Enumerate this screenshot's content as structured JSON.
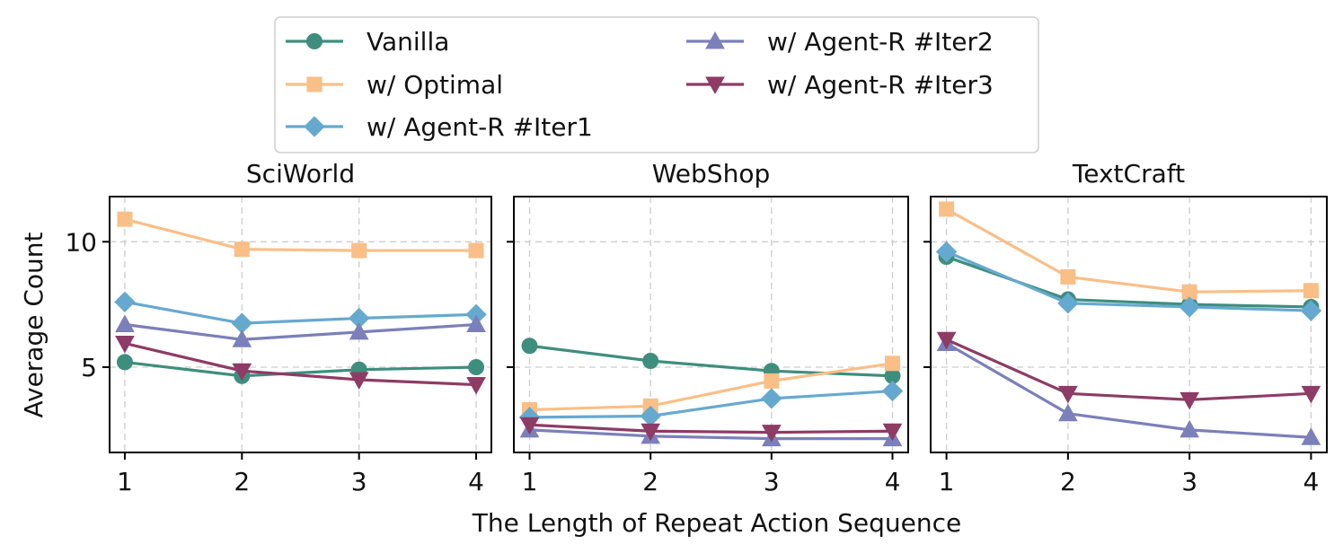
{
  "chart_data": {
    "type": "line",
    "xlabel": "The Length of Repeat Action Sequence",
    "ylabel": "Average Count",
    "ylim": [
      1.6,
      11.8
    ],
    "yticks": [
      5,
      10
    ],
    "x": [
      1,
      2,
      3,
      4
    ],
    "legend_position": "top-center",
    "legend": [
      {
        "name": "Vanilla",
        "color": "#3e8e7e",
        "marker": "circle"
      },
      {
        "name": "w/ Optimal",
        "color": "#f9bf87",
        "marker": "square"
      },
      {
        "name": "w/ Agent-R #Iter1",
        "color": "#66a9cf",
        "marker": "diamond"
      },
      {
        "name": "w/ Agent-R #Iter2",
        "color": "#7b80ba",
        "marker": "triangle-up"
      },
      {
        "name": "w/ Agent-R #Iter3",
        "color": "#8e3b66",
        "marker": "triangle-down"
      }
    ],
    "subplots": [
      {
        "title": "SciWorld",
        "series": [
          {
            "name": "Vanilla",
            "values": [
              5.2,
              4.65,
              4.9,
              5.0
            ]
          },
          {
            "name": "w/ Optimal",
            "values": [
              10.9,
              9.7,
              9.65,
              9.65
            ]
          },
          {
            "name": "w/ Agent-R #Iter1",
            "values": [
              7.6,
              6.75,
              6.95,
              7.1
            ]
          },
          {
            "name": "w/ Agent-R #Iter2",
            "values": [
              6.7,
              6.1,
              6.4,
              6.7
            ]
          },
          {
            "name": "w/ Agent-R #Iter3",
            "values": [
              5.95,
              4.85,
              4.5,
              4.3
            ]
          }
        ]
      },
      {
        "title": "WebShop",
        "series": [
          {
            "name": "Vanilla",
            "values": [
              5.85,
              5.25,
              4.85,
              4.65
            ]
          },
          {
            "name": "w/ Optimal",
            "values": [
              3.3,
              3.45,
              4.45,
              5.15
            ]
          },
          {
            "name": "w/ Agent-R #Iter1",
            "values": [
              3.0,
              3.05,
              3.75,
              4.05
            ]
          },
          {
            "name": "w/ Agent-R #Iter2",
            "values": [
              2.5,
              2.25,
              2.15,
              2.15
            ]
          },
          {
            "name": "w/ Agent-R #Iter3",
            "values": [
              2.7,
              2.45,
              2.4,
              2.45
            ]
          }
        ]
      },
      {
        "title": "TextCraft",
        "series": [
          {
            "name": "Vanilla",
            "values": [
              9.4,
              7.7,
              7.5,
              7.4
            ]
          },
          {
            "name": "w/ Optimal",
            "values": [
              11.3,
              8.6,
              8.0,
              8.05
            ]
          },
          {
            "name": "w/ Agent-R #Iter1",
            "values": [
              9.6,
              7.55,
              7.4,
              7.25
            ]
          },
          {
            "name": "w/ Agent-R #Iter2",
            "values": [
              5.95,
              3.15,
              2.5,
              2.2
            ]
          },
          {
            "name": "w/ Agent-R #Iter3",
            "values": [
              6.1,
              3.95,
              3.7,
              3.95
            ]
          }
        ]
      }
    ]
  }
}
